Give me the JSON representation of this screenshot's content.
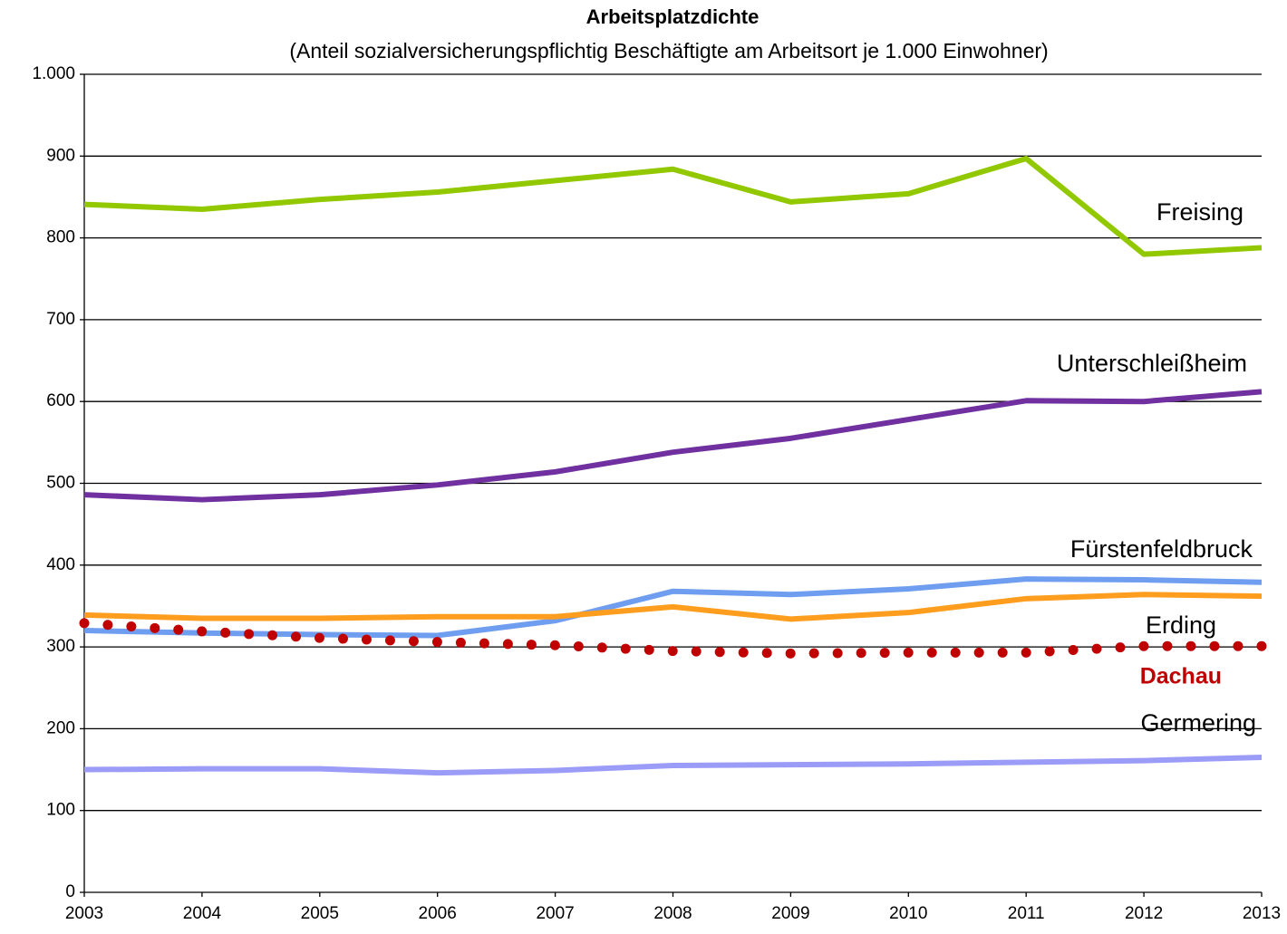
{
  "chart_data": {
    "type": "line",
    "title": "Arbeitsplatzdichte",
    "subtitle": "(Anteil sozialversicherungspflichtig Beschäftigte am Arbeitsort je 1.000 Einwohner)",
    "x": [
      2003,
      2004,
      2005,
      2006,
      2007,
      2008,
      2009,
      2010,
      2011,
      2012,
      2013
    ],
    "xlim": [
      2003,
      2013
    ],
    "xticks": [
      2003,
      2004,
      2005,
      2006,
      2007,
      2008,
      2009,
      2010,
      2011,
      2012,
      2013
    ],
    "ylim": [
      0,
      1000
    ],
    "yticks": [
      0,
      100,
      200,
      300,
      400,
      500,
      600,
      700,
      800,
      900,
      {
        "value": 1000,
        "label": "1.000"
      }
    ],
    "grid": true,
    "series": [
      {
        "name": "Freising",
        "color": "#92c800",
        "values": [
          841,
          835,
          847,
          856,
          870,
          884,
          844,
          854,
          897,
          780,
          788
        ]
      },
      {
        "name": "Unterschleißheim",
        "color": "#7030a0",
        "values": [
          486,
          480,
          486,
          498,
          514,
          538,
          555,
          578,
          601,
          600,
          612
        ]
      },
      {
        "name": "Fürstenfeldbruck",
        "color": "#6f9ef0",
        "values": [
          320,
          317,
          315,
          314,
          332,
          368,
          364,
          371,
          383,
          382,
          379
        ]
      },
      {
        "name": "Erding",
        "color": "#ff9d1e",
        "values": [
          339,
          335,
          335,
          337,
          337,
          349,
          334,
          342,
          359,
          364,
          362
        ]
      },
      {
        "name": "Dachau",
        "color": "#c00000",
        "dotted": true,
        "values": [
          329,
          319,
          311,
          306,
          302,
          295,
          292,
          293,
          293,
          301,
          301
        ]
      },
      {
        "name": "Germering",
        "color": "#9b9bf8",
        "values": [
          150,
          151,
          151,
          146,
          149,
          155,
          156,
          157,
          159,
          161,
          165
        ]
      }
    ]
  }
}
